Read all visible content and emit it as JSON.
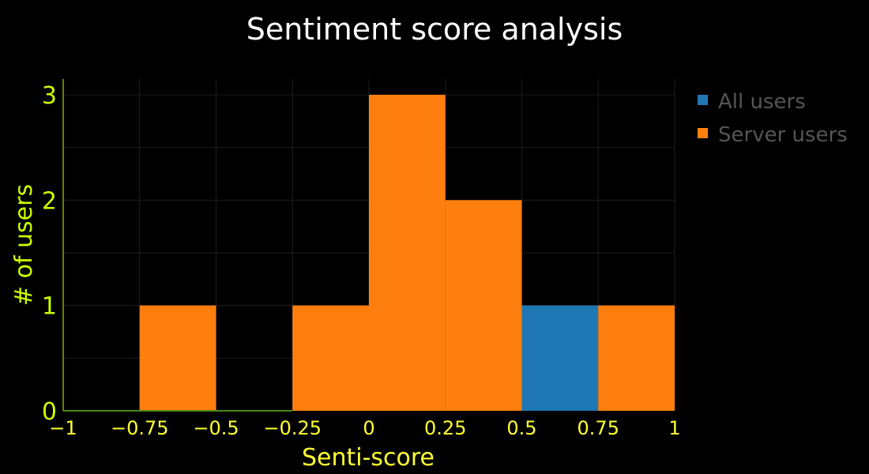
{
  "chart_data": {
    "type": "bar",
    "title": "Sentiment score analysis",
    "xlabel": "Senti-score",
    "ylabel": "# of users",
    "x_tick_labels": [
      "−1",
      "−0.75",
      "−0.5",
      "−0.25",
      "0",
      "0.25",
      "0.5",
      "0.75",
      "1"
    ],
    "y_tick_labels": [
      "0",
      "1",
      "2",
      "3"
    ],
    "xlim": [
      -1,
      1
    ],
    "ylim": [
      0,
      3.15
    ],
    "x_ticks": [
      -1,
      -0.75,
      -0.5,
      -0.25,
      0,
      0.25,
      0.5,
      0.75,
      1
    ],
    "y_ticks": [
      0,
      1,
      2,
      3
    ],
    "bin_edges": [
      -1,
      -0.75,
      -0.5,
      -0.25,
      0,
      0.25,
      0.5,
      0.75,
      1
    ],
    "series": [
      {
        "name": "All users",
        "color": "#1f77b4",
        "values": [
          0,
          0,
          0,
          0,
          0,
          0,
          1,
          0
        ]
      },
      {
        "name": "Server users",
        "color": "#ff7f0e",
        "values": [
          0,
          1,
          0,
          1,
          3,
          2,
          0,
          1
        ]
      }
    ],
    "grid": true,
    "legend_position": "top-right",
    "colors": {
      "background": "#000000",
      "title": "#ffffff",
      "x_axis": "#ffff33",
      "y_axis": "#ccff00",
      "legend_text": "#555555"
    }
  }
}
